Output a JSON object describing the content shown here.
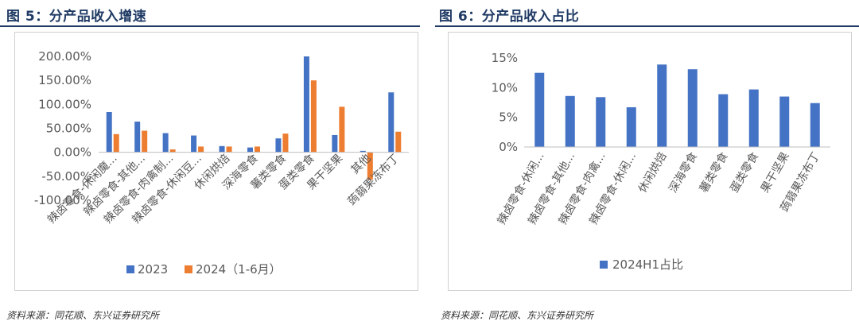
{
  "left": {
    "figure_title": "图 5：分产品收入增速",
    "source": "资料来源：同花顺、东兴证券研究所"
  },
  "right": {
    "figure_title": "图 6：分产品收入占比",
    "source": "资料来源：同花顺、东兴证券研究所"
  },
  "colors": {
    "blue": "#4472C4",
    "orange": "#ED7D31",
    "title": "#1f3a64"
  },
  "chart_data": [
    {
      "type": "bar",
      "title": "",
      "xlabel": "",
      "ylabel": "",
      "categories": [
        "辣卤零食-休闲魔...",
        "辣卤零食-其他...",
        "辣卤零食-肉禽制...",
        "辣卤零食-休闲豆...",
        "休闲烘焙",
        "深海零食",
        "薯类零食",
        "蛋类零食",
        "果干坚果",
        "其他",
        "蒟蒻果冻布丁"
      ],
      "series": [
        {
          "name": "2023",
          "values": [
            84,
            64,
            40,
            35,
            13,
            10,
            29,
            200,
            36,
            3,
            125
          ]
        },
        {
          "name": "2024（1-6月）",
          "values": [
            38,
            45,
            6,
            12,
            12,
            12,
            39,
            150,
            95,
            -57,
            43
          ]
        }
      ],
      "yticks": [
        "200.00%",
        "150.00%",
        "100.00%",
        "50.00%",
        "0.00%",
        "-50.00%",
        "-100.00%"
      ],
      "ylim": [
        -100,
        200
      ],
      "legend_position": "bottom",
      "grid": false
    },
    {
      "type": "bar",
      "title": "",
      "xlabel": "",
      "ylabel": "",
      "categories": [
        "辣卤零食-休闲...",
        "辣卤零食-其他...",
        "辣卤零食-肉禽...",
        "辣卤零食-休闲...",
        "休闲烘焙",
        "深海零食",
        "薯类零食",
        "蛋类零食",
        "果干坚果",
        "蒟蒻果冻布丁"
      ],
      "series": [
        {
          "name": "2024H1占比",
          "values": [
            12.5,
            8.6,
            8.4,
            6.7,
            13.9,
            13.1,
            8.9,
            9.7,
            8.5,
            7.4
          ]
        }
      ],
      "yticks": [
        "15%",
        "10%",
        "5%",
        "0%"
      ],
      "ylim": [
        0,
        15
      ],
      "legend_position": "bottom",
      "grid": false
    }
  ]
}
